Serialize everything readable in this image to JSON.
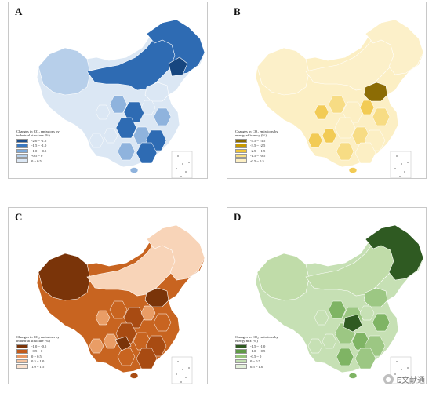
{
  "panels": [
    {
      "label": "A",
      "legend_title": "Changes in CO₂ emissions by industrial structure (%)",
      "legend": [
        {
          "range": "-2.0 ~ -1.5",
          "color": "#1d4e8c"
        },
        {
          "range": "-1.5 ~ -1.0",
          "color": "#3a78c0"
        },
        {
          "range": "-1.0 ~ -0.5",
          "color": "#7ea9d8"
        },
        {
          "range": "-0.5 ~ 0",
          "color": "#b9d2ec"
        },
        {
          "range": "0 ~ 0.5",
          "color": "#dce8f5"
        }
      ],
      "colors": {
        "base": "#dbe7f4",
        "north": "#b7cfea",
        "band": "#2e6bb3",
        "dark": "#17467f",
        "mid": "#8fb3dd"
      }
    },
    {
      "label": "B",
      "legend_title": "Changes in CO₂ emissions by energy efficiency (%)",
      "legend": [
        {
          "range": "-4.5 ~ -3.5",
          "color": "#8a6a00"
        },
        {
          "range": "-3.5 ~ -2.5",
          "color": "#c99a00"
        },
        {
          "range": "-2.5 ~ -1.5",
          "color": "#efc43a"
        },
        {
          "range": "-1.5 ~ -0.5",
          "color": "#f8df86"
        },
        {
          "range": "-0.5 ~ 0.5",
          "color": "#fdf0c4"
        }
      ],
      "colors": {
        "base": "#fcefc4",
        "north": "#fcf0c9",
        "band": "#f7dc84",
        "dark": "#8c6c05",
        "mid": "#f2cb55"
      }
    },
    {
      "label": "C",
      "legend_title": "Changes in CO₂ emissions by industrial structure (%)",
      "legend": [
        {
          "range": "-1.0 ~ -0.5",
          "color": "#7a3409"
        },
        {
          "range": "-0.5 ~ 0",
          "color": "#c25a1a"
        },
        {
          "range": "0 ~ 0.5",
          "color": "#e99a64"
        },
        {
          "range": "0.5 ~ 1.0",
          "color": "#f5c4a0"
        },
        {
          "range": "1.0 ~ 1.5",
          "color": "#fbe3d0"
        }
      ],
      "colors": {
        "base": "#c86420",
        "north": "#f8d4b8",
        "band": "#e99d66",
        "dark": "#7a3409",
        "mid": "#a84b12"
      }
    },
    {
      "label": "D",
      "legend_title": "Changes in CO₂ emissions by energy mix (%)",
      "legend": [
        {
          "range": "-1.5 ~ -1.0",
          "color": "#2f5a22"
        },
        {
          "range": "-1.0 ~ -0.5",
          "color": "#5f9a46"
        },
        {
          "range": "-0.5 ~ 0",
          "color": "#97c47c"
        },
        {
          "range": "0 ~ 0.5",
          "color": "#c3dfb1"
        },
        {
          "range": "0.5 ~ 1.0",
          "color": "#e4f1db"
        }
      ],
      "colors": {
        "base": "#c6e0b4",
        "north": "#c0dca9",
        "band": "#9cc783",
        "dark": "#2f5a22",
        "mid": "#7fb464"
      }
    }
  ],
  "watermark": {
    "text": "E文献通"
  }
}
